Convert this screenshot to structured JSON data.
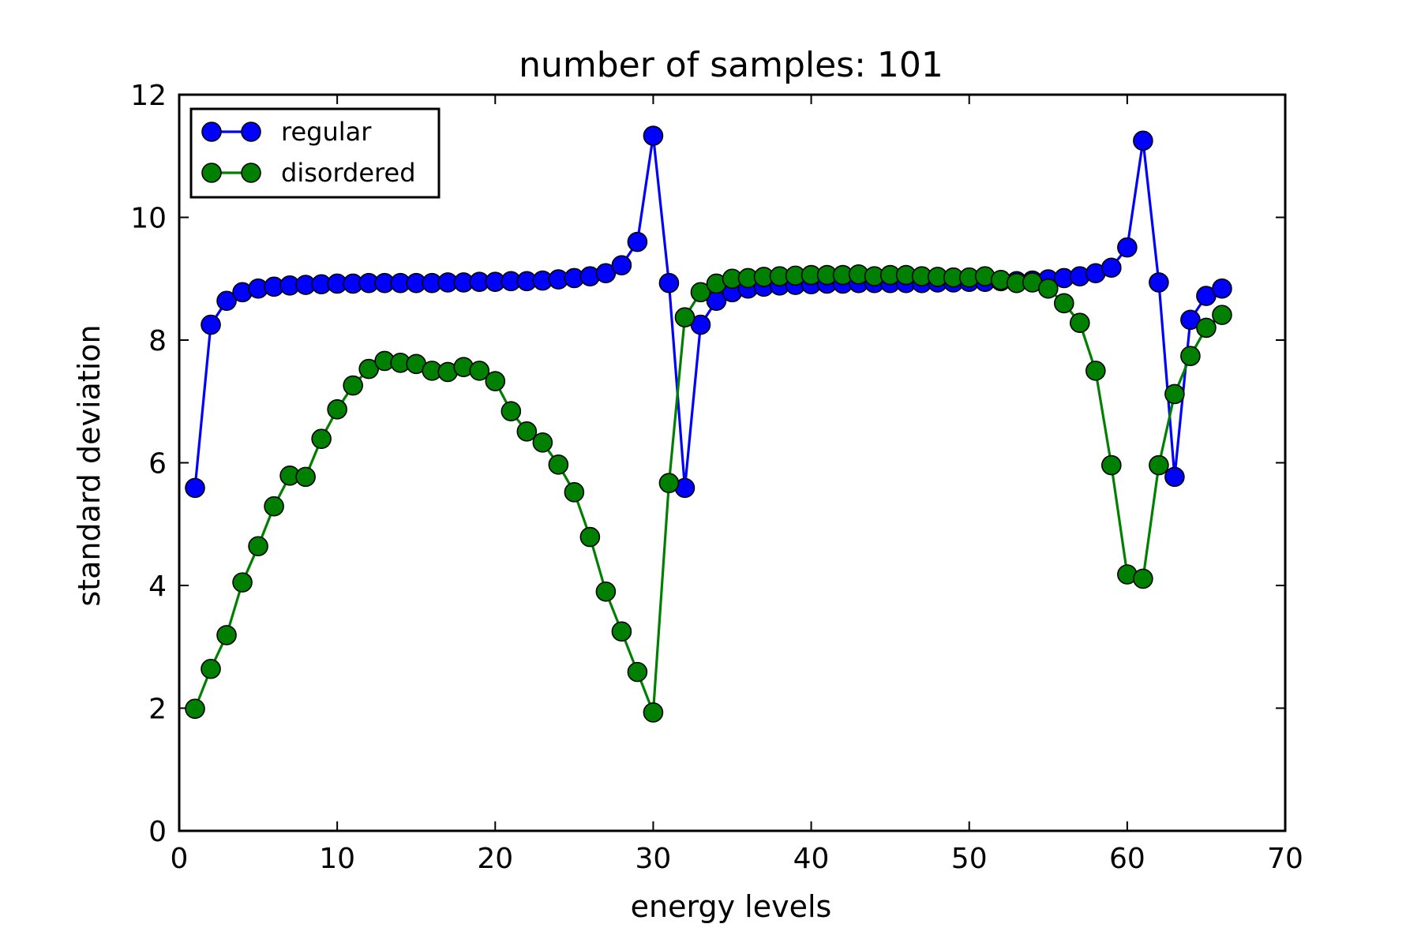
{
  "chart_data": {
    "type": "line",
    "title": "number of samples: 101",
    "xlabel": "energy levels",
    "ylabel": "standard deviation",
    "xlim": [
      0,
      70
    ],
    "ylim": [
      0,
      12
    ],
    "xticks": [
      0,
      10,
      20,
      30,
      40,
      50,
      60,
      70
    ],
    "yticks": [
      0,
      2,
      4,
      6,
      8,
      10,
      12
    ],
    "grid": false,
    "legend_position": "top-left",
    "x": [
      1,
      2,
      3,
      4,
      5,
      6,
      7,
      8,
      9,
      10,
      11,
      12,
      13,
      14,
      15,
      16,
      17,
      18,
      19,
      20,
      21,
      22,
      23,
      24,
      25,
      26,
      27,
      28,
      29,
      30,
      31,
      32,
      33,
      34,
      35,
      36,
      37,
      38,
      39,
      40,
      41,
      42,
      43,
      44,
      45,
      46,
      47,
      48,
      49,
      50,
      51,
      52,
      53,
      54,
      55,
      56,
      57,
      58,
      59,
      60,
      61,
      62,
      63,
      64,
      65,
      66
    ],
    "series": [
      {
        "name": "regular",
        "color": "#0000ff",
        "values": [
          5.59,
          8.25,
          8.64,
          8.78,
          8.84,
          8.87,
          8.89,
          8.9,
          8.91,
          8.92,
          8.92,
          8.93,
          8.93,
          8.93,
          8.93,
          8.93,
          8.94,
          8.94,
          8.95,
          8.95,
          8.96,
          8.96,
          8.97,
          8.99,
          9.01,
          9.04,
          9.09,
          9.22,
          9.6,
          11.33,
          8.93,
          5.59,
          8.25,
          8.64,
          8.78,
          8.84,
          8.87,
          8.89,
          8.9,
          8.91,
          8.92,
          8.92,
          8.93,
          8.93,
          8.93,
          8.93,
          8.93,
          8.94,
          8.94,
          8.95,
          8.95,
          8.96,
          8.96,
          8.97,
          8.99,
          9.01,
          9.04,
          9.09,
          9.18,
          9.51,
          11.25,
          8.94,
          5.77,
          8.33,
          8.72,
          8.84
        ]
      },
      {
        "name": "disordered",
        "color": "#008000",
        "values": [
          1.99,
          2.64,
          3.19,
          4.05,
          4.64,
          5.29,
          5.79,
          5.77,
          6.39,
          6.87,
          7.26,
          7.53,
          7.66,
          7.63,
          7.61,
          7.5,
          7.48,
          7.56,
          7.5,
          7.33,
          6.84,
          6.51,
          6.33,
          5.97,
          5.52,
          4.79,
          3.9,
          3.25,
          2.59,
          1.93,
          5.67,
          8.37,
          8.78,
          8.92,
          9.0,
          9.01,
          9.03,
          9.04,
          9.05,
          9.06,
          9.06,
          9.06,
          9.07,
          9.04,
          9.06,
          9.06,
          9.04,
          9.03,
          9.02,
          9.02,
          9.04,
          8.98,
          8.93,
          8.94,
          8.84,
          8.6,
          8.28,
          7.5,
          5.96,
          4.18,
          4.11,
          5.96,
          7.12,
          7.74,
          8.2,
          8.41
        ]
      }
    ]
  }
}
